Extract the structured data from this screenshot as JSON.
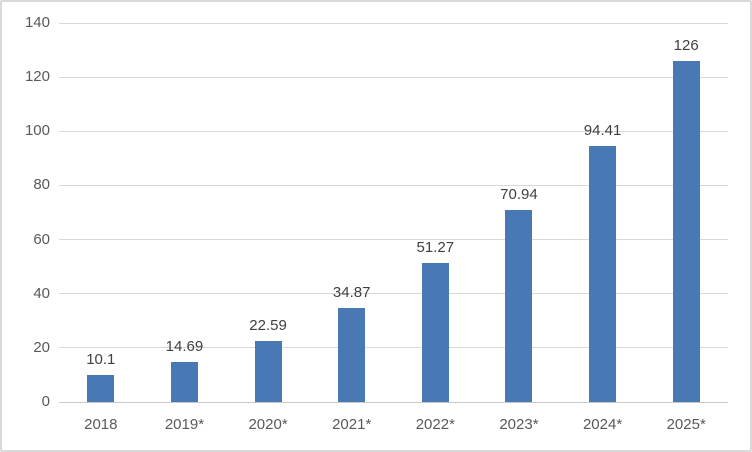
{
  "chart_data": {
    "type": "bar",
    "title": "",
    "xlabel": "",
    "ylabel": "",
    "categories": [
      "2018",
      "2019*",
      "2020*",
      "2021*",
      "2022*",
      "2023*",
      "2024*",
      "2025*"
    ],
    "values": [
      10.1,
      14.69,
      22.59,
      34.87,
      51.27,
      70.94,
      94.41,
      126
    ],
    "value_labels": [
      "10.1",
      "14.69",
      "22.59",
      "34.87",
      "51.27",
      "70.94",
      "94.41",
      "126"
    ],
    "ylim": [
      0,
      140
    ],
    "yticks": [
      0,
      20,
      40,
      60,
      80,
      100,
      120,
      140
    ],
    "grid": true,
    "legend": false,
    "colors": {
      "bar": "#4879b4",
      "gridline": "#d9d9d9",
      "axis_line": "#c9c9c9",
      "tick_label": "#595959",
      "value_label": "#404040",
      "frame_border": "#d9d9d9",
      "background": "#ffffff"
    }
  }
}
